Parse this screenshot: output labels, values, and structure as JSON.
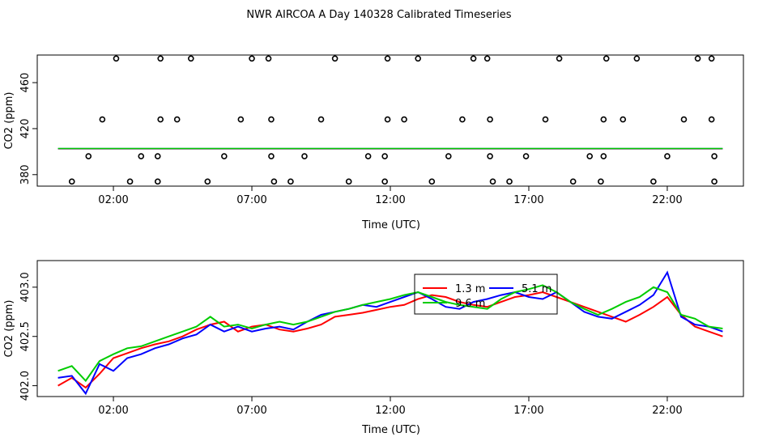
{
  "figure_title": "NWR AIRCOA A  Day 140328  Calibrated Timeseries",
  "chart_data": [
    {
      "type": "scatter",
      "title": "",
      "xlabel": "Time (UTC)",
      "ylabel": "CO2 (ppm)",
      "xlim": [
        -0.75,
        24.75
      ],
      "ylim": [
        370,
        484
      ],
      "x_ticks": [
        2,
        7,
        12,
        17,
        22
      ],
      "x_tick_labels": [
        "02:00",
        "07:00",
        "12:00",
        "17:00",
        "22:00"
      ],
      "y_ticks": [
        380,
        420,
        460
      ],
      "y_tick_labels": [
        "380",
        "420",
        "460"
      ],
      "points_x_hours": [
        0.5,
        1.1,
        1.6,
        2.1,
        2.6,
        3.0,
        3.6,
        3.6,
        3.7,
        3.7,
        4.3,
        4.8,
        5.4,
        6.0,
        6.6,
        7.0,
        7.6,
        7.7,
        7.7,
        7.8,
        8.4,
        8.9,
        9.5,
        10.0,
        10.5,
        11.2,
        11.8,
        11.8,
        11.9,
        11.9,
        12.5,
        13.0,
        13.5,
        14.1,
        14.6,
        15.0,
        15.5,
        15.6,
        15.6,
        15.7,
        16.3,
        16.9,
        17.6,
        18.1,
        18.6,
        19.2,
        19.6,
        19.7,
        19.7,
        19.8,
        20.4,
        20.9,
        21.5,
        22.0,
        22.6,
        23.1,
        23.6,
        23.6,
        23.7,
        23.7
      ],
      "points_y_ppm": [
        374,
        396,
        428,
        481,
        374,
        396,
        374,
        396,
        428,
        481,
        428,
        481,
        374,
        396,
        428,
        481,
        481,
        428,
        396,
        374,
        374,
        396,
        428,
        481,
        374,
        396,
        374,
        396,
        428,
        481,
        428,
        481,
        374,
        396,
        428,
        481,
        481,
        428,
        396,
        374,
        374,
        396,
        428,
        481,
        374,
        396,
        374,
        396,
        428,
        481,
        428,
        481,
        374,
        396,
        428,
        481,
        481,
        428,
        396,
        374
      ],
      "series": [
        {
          "name": "1.3 m",
          "color": "#ff0000",
          "level_ppm": 402.5
        },
        {
          "name": "5.1 m",
          "color": "#0000ff",
          "level_ppm": 402.6
        },
        {
          "name": "",
          "color": "#00cc00",
          "level_ppm": 402.7
        }
      ]
    },
    {
      "type": "line",
      "title": "",
      "xlabel": "Time (UTC)",
      "ylabel": "CO2 (ppm)",
      "xlim": [
        -0.75,
        24.75
      ],
      "ylim": [
        401.89,
        403.27
      ],
      "x_ticks": [
        2,
        7,
        12,
        17,
        22
      ],
      "x_tick_labels": [
        "02:00",
        "07:00",
        "12:00",
        "17:00",
        "22:00"
      ],
      "y_ticks": [
        402.0,
        402.5,
        403.0
      ],
      "y_tick_labels": [
        "402.0",
        "402.5",
        "403.0"
      ],
      "legend": {
        "placement": "top-center",
        "labels": [
          "1.3 m",
          "5.1 m",
          "9.6 m"
        ],
        "colors": [
          "#ff0000",
          "#0000ff",
          "#00cc00"
        ]
      },
      "x_hours": [
        0.0,
        0.5,
        1.0,
        1.5,
        2.0,
        2.5,
        3.0,
        3.5,
        4.0,
        4.5,
        5.0,
        5.5,
        6.0,
        6.5,
        7.0,
        7.5,
        8.0,
        8.5,
        9.0,
        9.5,
        10.0,
        10.5,
        11.0,
        11.5,
        12.0,
        12.5,
        13.0,
        13.5,
        14.0,
        14.5,
        15.0,
        15.5,
        16.0,
        16.5,
        17.0,
        17.5,
        18.0,
        18.5,
        19.0,
        19.5,
        20.0,
        20.5,
        21.0,
        21.5,
        22.0,
        22.5,
        23.0,
        23.5,
        24.0
      ],
      "series": [
        {
          "name": "1.3 m",
          "color": "#ff0000",
          "values": [
            402.0,
            402.08,
            401.98,
            402.12,
            402.28,
            402.33,
            402.38,
            402.42,
            402.45,
            402.5,
            402.57,
            402.62,
            402.65,
            402.55,
            402.6,
            402.62,
            402.57,
            402.55,
            402.58,
            402.62,
            402.7,
            402.72,
            402.74,
            402.77,
            402.8,
            402.82,
            402.88,
            402.92,
            402.9,
            402.85,
            402.82,
            402.8,
            402.85,
            402.9,
            402.92,
            402.95,
            402.9,
            402.85,
            402.8,
            402.75,
            402.7,
            402.65,
            402.72,
            402.8,
            402.9,
            402.72,
            402.6,
            402.55,
            402.5
          ]
        },
        {
          "name": "5.1 m",
          "color": "#0000ff",
          "values": [
            402.08,
            402.1,
            401.92,
            402.22,
            402.15,
            402.28,
            402.32,
            402.38,
            402.42,
            402.48,
            402.52,
            402.62,
            402.55,
            402.6,
            402.55,
            402.58,
            402.6,
            402.57,
            402.65,
            402.72,
            402.75,
            402.78,
            402.82,
            402.8,
            402.85,
            402.9,
            402.95,
            402.88,
            402.8,
            402.78,
            402.85,
            402.88,
            402.92,
            402.95,
            402.9,
            402.88,
            402.95,
            402.85,
            402.75,
            402.7,
            402.68,
            402.75,
            402.82,
            402.92,
            403.15,
            402.7,
            402.62,
            402.6,
            402.55
          ]
        },
        {
          "name": "9.6 m",
          "color": "#00cc00",
          "values": [
            402.15,
            402.2,
            402.05,
            402.25,
            402.32,
            402.38,
            402.4,
            402.45,
            402.5,
            402.55,
            402.6,
            402.7,
            402.6,
            402.62,
            402.58,
            402.62,
            402.65,
            402.62,
            402.65,
            402.7,
            402.75,
            402.78,
            402.82,
            402.85,
            402.88,
            402.92,
            402.95,
            402.9,
            402.85,
            402.82,
            402.8,
            402.78,
            402.88,
            402.95,
            402.98,
            403.02,
            402.95,
            402.85,
            402.78,
            402.72,
            402.78,
            402.85,
            402.9,
            403.0,
            402.95,
            402.72,
            402.68,
            402.6,
            402.58
          ]
        }
      ]
    }
  ]
}
